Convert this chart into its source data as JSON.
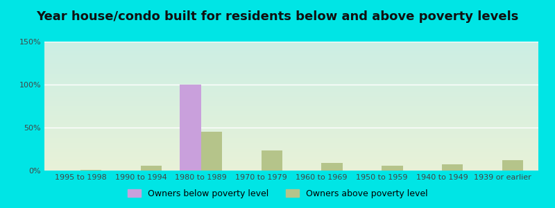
{
  "title": "Year house/condo built for residents below and above poverty levels",
  "categories": [
    "1995 to 1998",
    "1990 to 1994",
    "1980 to 1989",
    "1970 to 1979",
    "1960 to 1969",
    "1950 to 1959",
    "1940 to 1949",
    "1939 or earlier"
  ],
  "below_poverty": [
    0,
    0,
    100,
    0,
    0,
    0,
    0,
    0
  ],
  "above_poverty": [
    0.5,
    6,
    45,
    23,
    9,
    6,
    7,
    12
  ],
  "below_color": "#c9a0dc",
  "above_color": "#b5c48a",
  "ylim": [
    0,
    150
  ],
  "yticks": [
    0,
    50,
    100,
    150
  ],
  "ytick_labels": [
    "0%",
    "50%",
    "100%",
    "150%"
  ],
  "bar_width": 0.35,
  "legend_below": "Owners below poverty level",
  "legend_above": "Owners above poverty level",
  "grad_top": "#cceee4",
  "grad_bottom": "#e8f2d8",
  "outer_bg": "#00e5e5",
  "title_fontsize": 13,
  "tick_fontsize": 8,
  "legend_fontsize": 9,
  "grid_color": "#ffffff",
  "axis_label_color": "#444444"
}
